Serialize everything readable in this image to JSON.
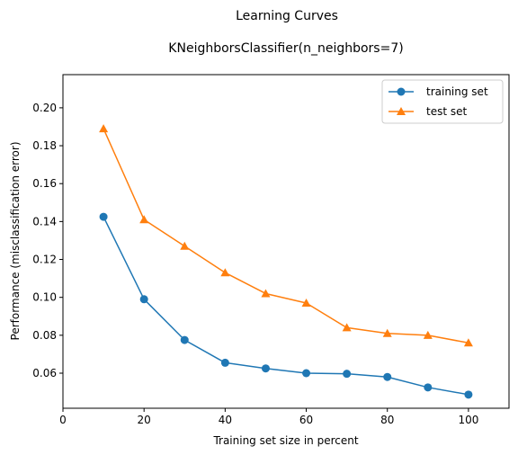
{
  "chart_data": {
    "type": "line",
    "suptitle": "Learning Curves",
    "title": "KNeighborsClassifier(n_neighbors=7)",
    "xlabel": "Training set size in percent",
    "ylabel": "Performance (misclassification error)",
    "xlim": [
      0,
      110
    ],
    "ylim": [
      0.0415,
      0.2175
    ],
    "xticks": [
      0,
      20,
      40,
      60,
      80,
      100
    ],
    "yticks": [
      0.06,
      0.08,
      0.1,
      0.12,
      0.14,
      0.16,
      0.18,
      0.2
    ],
    "ytick_labels": [
      "0.06",
      "0.08",
      "0.10",
      "0.12",
      "0.14",
      "0.16",
      "0.18",
      "0.20"
    ],
    "grid": false,
    "legend_position": "top-right",
    "x": [
      10,
      20,
      30,
      40,
      50,
      60,
      70,
      80,
      90,
      100
    ],
    "series": [
      {
        "name": "training set",
        "color": "#1f77b4",
        "marker": "circle",
        "values": [
          0.1425,
          0.099,
          0.0775,
          0.0655,
          0.0625,
          0.06,
          0.0597,
          0.058,
          0.0525,
          0.0487
        ]
      },
      {
        "name": "test set",
        "color": "#ff7f0e",
        "marker": "triangle",
        "values": [
          0.189,
          0.141,
          0.127,
          0.113,
          0.102,
          0.097,
          0.084,
          0.081,
          0.08,
          0.076
        ]
      }
    ]
  }
}
